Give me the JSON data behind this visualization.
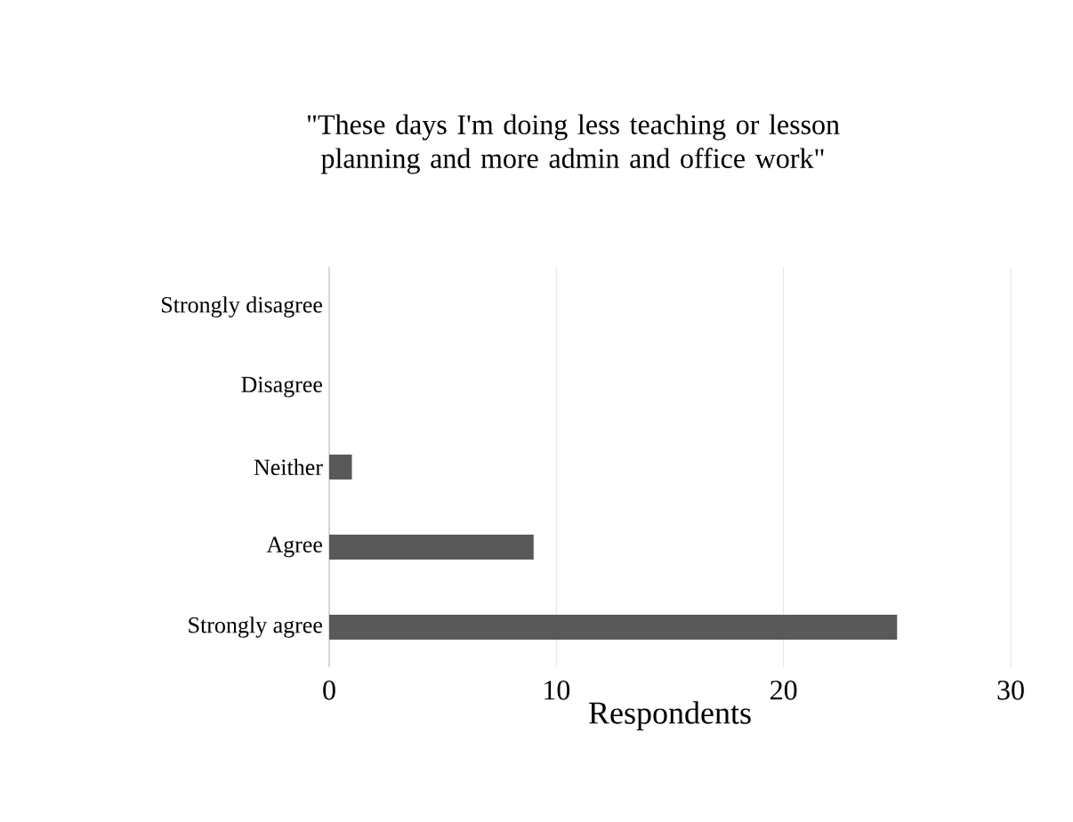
{
  "chart_data": {
    "type": "bar",
    "orientation": "horizontal",
    "title": "\"These days I'm doing less teaching or lesson planning and more admin and office work\"",
    "xlabel": "Respondents",
    "categories": [
      "Strongly disagree",
      "Disagree",
      "Neither",
      "Agree",
      "Strongly agree"
    ],
    "values": [
      0,
      0,
      1,
      9,
      25
    ],
    "color": "#595959",
    "xlim": [
      0,
      30
    ],
    "xticks": [
      0,
      10,
      20,
      30
    ],
    "grid": "x"
  }
}
